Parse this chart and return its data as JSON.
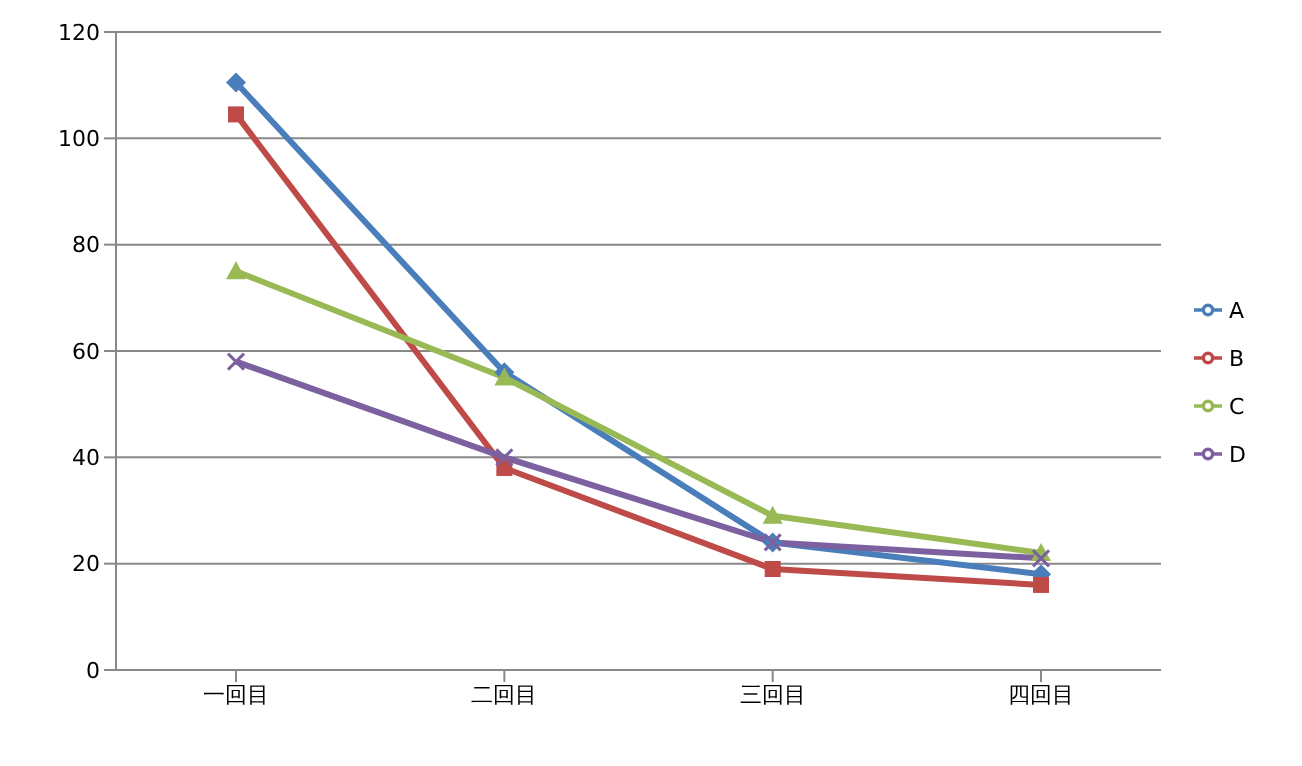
{
  "chart_data": {
    "type": "line",
    "categories": [
      "一回目",
      "二回目",
      "三回目",
      "四回目"
    ],
    "series": [
      {
        "name": "A",
        "color": "#4a7ebb",
        "marker": "diamond",
        "values": [
          110.5,
          56,
          24,
          18
        ]
      },
      {
        "name": "B",
        "color": "#be4b48",
        "marker": "square",
        "values": [
          104.5,
          38,
          19,
          16
        ]
      },
      {
        "name": "C",
        "color": "#98b954",
        "marker": "triangle",
        "values": [
          75,
          55,
          29,
          22
        ]
      },
      {
        "name": "D",
        "color": "#7d60a0",
        "marker": "cross",
        "values": [
          58,
          40,
          24,
          21
        ]
      }
    ],
    "ylim": [
      0,
      120
    ],
    "yticks": [
      0,
      20,
      40,
      60,
      80,
      100,
      120
    ],
    "grid": "y",
    "legend": "right"
  }
}
